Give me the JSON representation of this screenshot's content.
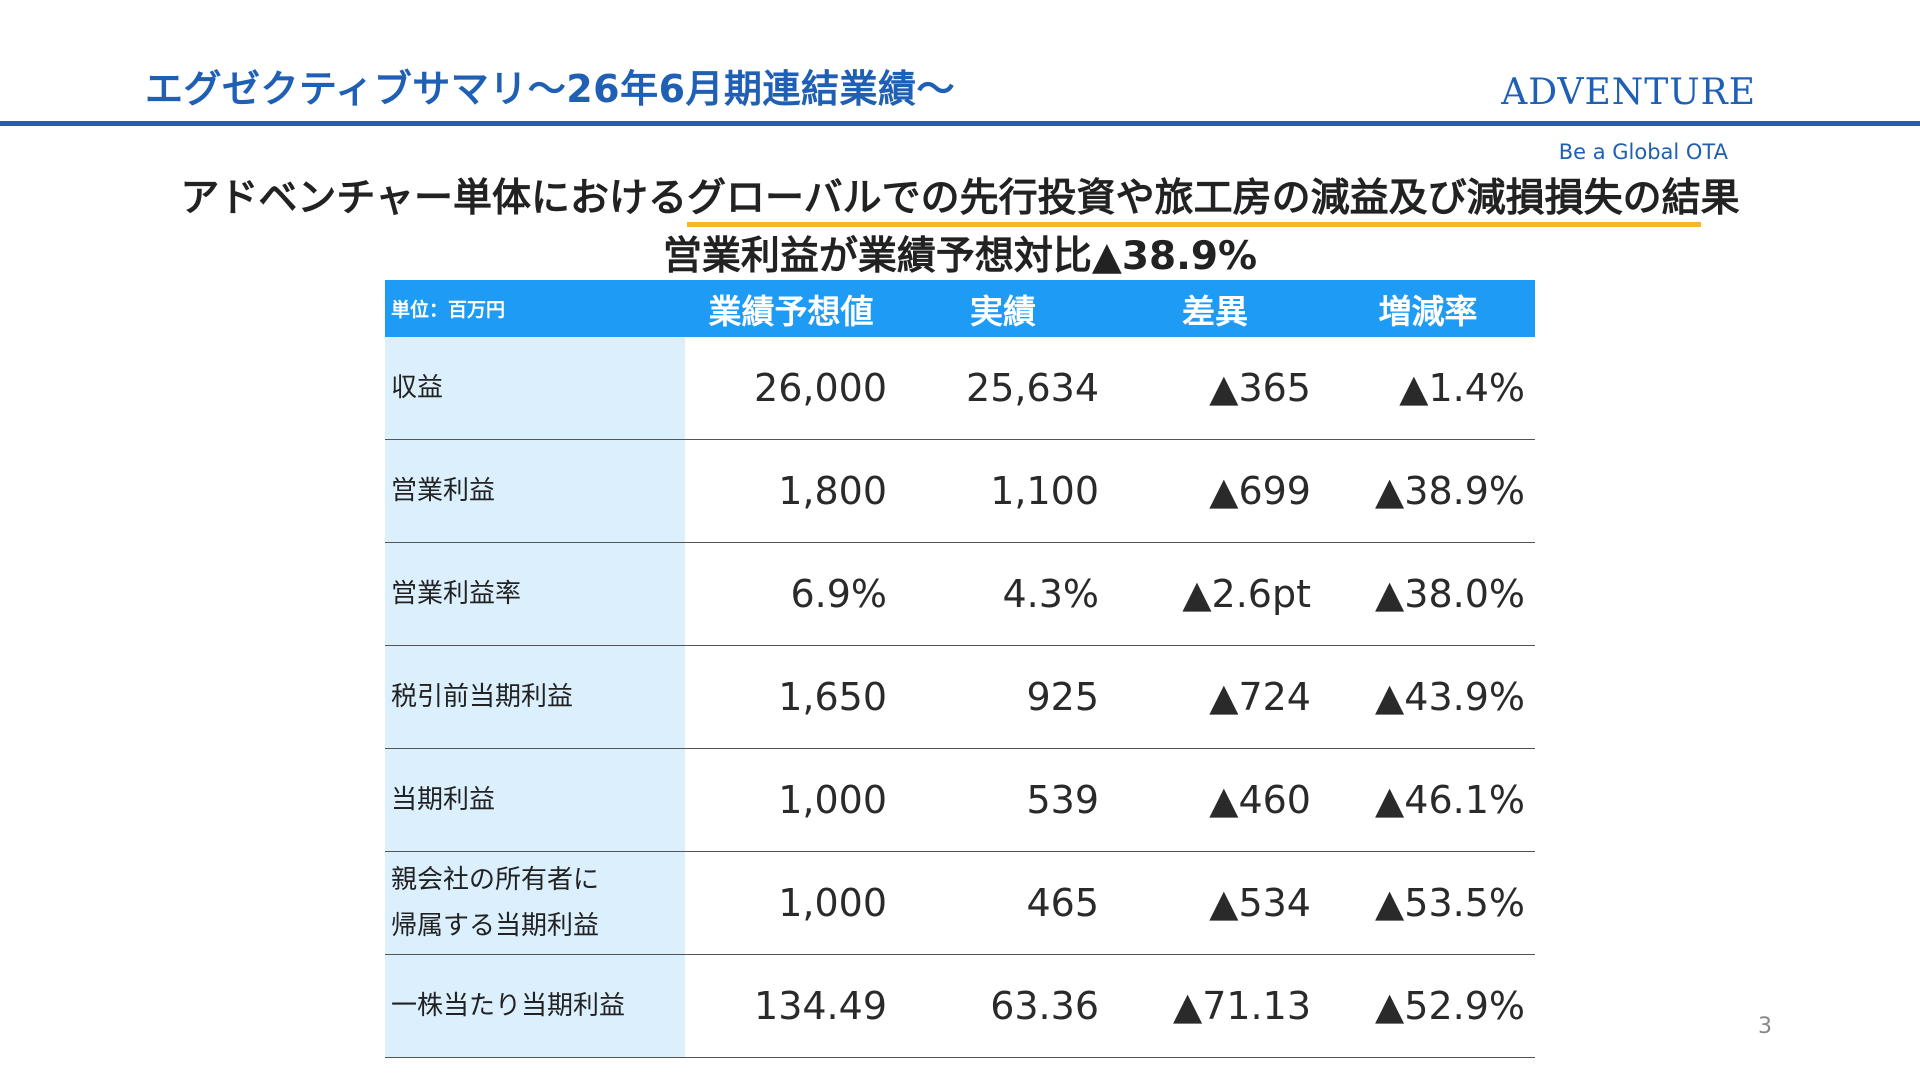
{
  "header": {
    "title": "エグゼクティブサマリ〜26年6月期連結業績〜",
    "brand": "ADVENTURE",
    "tagline": "Be a Global OTA"
  },
  "headline": {
    "line1_pre": "アドベンチャー単体における",
    "line1_highlight": "グローバルでの先行投資や旅工房の減益及び減損損失の結",
    "line1_post": "果",
    "line2": "営業利益が業績予想対比▲38.9%"
  },
  "table": {
    "unit": "単位：百万円",
    "columns": [
      "業績予想値",
      "実績",
      "差異",
      "増減率"
    ],
    "rows": [
      {
        "label": [
          "収益"
        ],
        "forecast": "26,000",
        "actual": "25,634",
        "diff": "▲365",
        "rate": "▲1.4%"
      },
      {
        "label": [
          "営業利益"
        ],
        "forecast": "1,800",
        "actual": "1,100",
        "diff": "▲699",
        "rate": "▲38.9%"
      },
      {
        "label": [
          "営業利益率"
        ],
        "forecast": "6.9%",
        "actual": "4.3%",
        "diff": "▲2.6pt",
        "rate": "▲38.0%"
      },
      {
        "label": [
          "税引前当期利益"
        ],
        "forecast": "1,650",
        "actual": "925",
        "diff": "▲724",
        "rate": "▲43.9%"
      },
      {
        "label": [
          "当期利益"
        ],
        "forecast": "1,000",
        "actual": "539",
        "diff": "▲460",
        "rate": "▲46.1%"
      },
      {
        "label": [
          "親会社の所有者に",
          "帰属する当期利益"
        ],
        "forecast": "1,000",
        "actual": "465",
        "diff": "▲534",
        "rate": "▲53.5%"
      },
      {
        "label": [
          "一株当たり当期利益"
        ],
        "forecast": "134.49",
        "actual": "63.36",
        "diff": "▲71.13",
        "rate": "▲52.9%"
      }
    ]
  },
  "page_number": "3"
}
